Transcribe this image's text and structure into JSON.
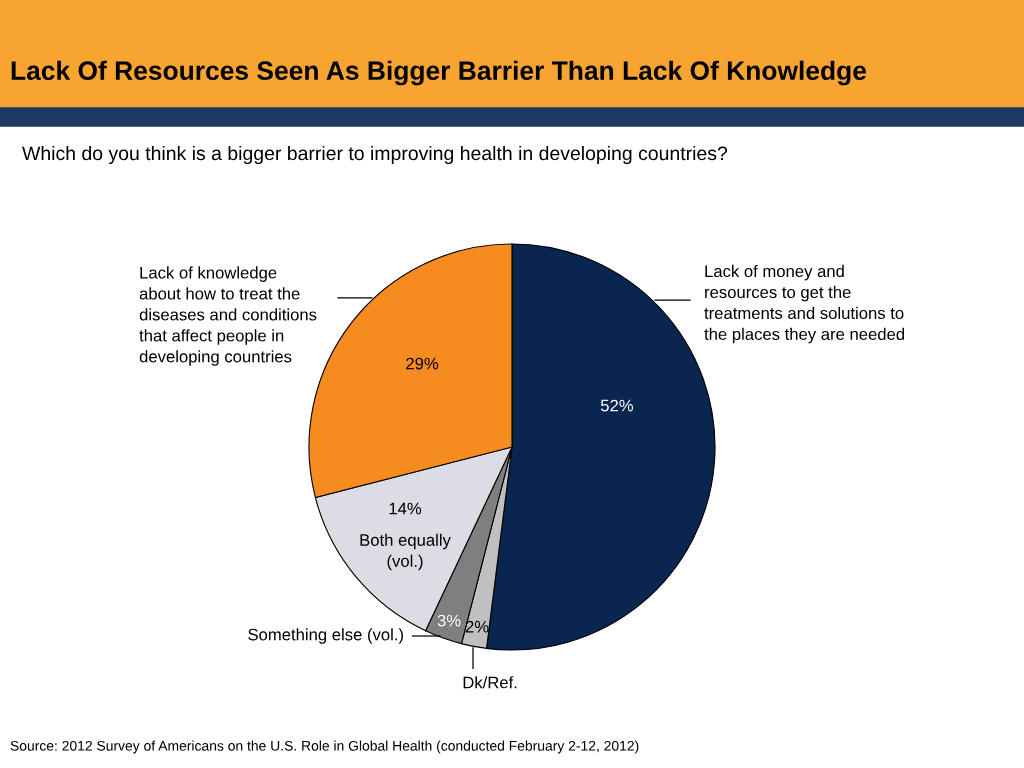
{
  "chart_data": {
    "type": "pie",
    "title": "Lack Of Resources Seen As Bigger Barrier Than Lack Of Knowledge",
    "subtitle": "Which do you think is a bigger barrier to improving health in developing countries?",
    "categories": [
      "Lack of money and\nresources to get the\ntreatments and solutions to\nthe places they are needed",
      "Dk/Ref.",
      "Something else (vol.)",
      "Both equally\n(vol.)",
      "Lack of knowledge\nabout how to treat the\ndiseases and conditions\nthat affect people in\ndeveloping countries"
    ],
    "values": [
      52,
      2,
      3,
      14,
      29
    ],
    "colors": [
      "#0a2550",
      "#c0c0c0",
      "#7f7f7f",
      "#dcdce4",
      "#f68b1f"
    ],
    "value_labels": [
      "52%",
      "2%",
      "3%",
      "14%",
      "29%"
    ],
    "annotations": [
      "Source: 2012 Survey of Americans on the U.S. Role in Global Health (conducted February 2-12, 2012)"
    ]
  }
}
